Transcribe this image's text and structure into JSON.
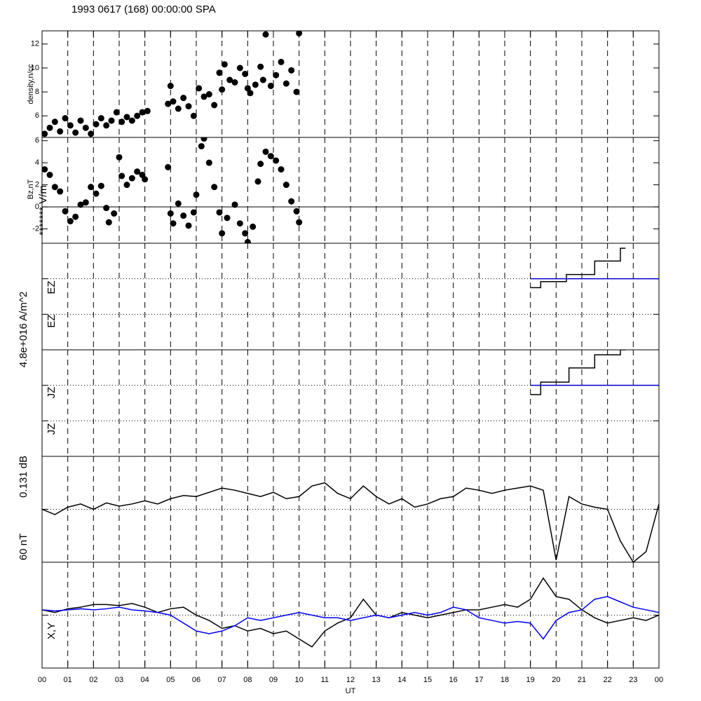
{
  "title": "1993 0617 (168) 00:00:00 SPA",
  "x_axis": {
    "label": "UT",
    "xlim": [
      0,
      24
    ],
    "xticks": [
      {
        "value": 0,
        "label": "00"
      },
      {
        "value": 1,
        "label": "01"
      },
      {
        "value": 2,
        "label": "02"
      },
      {
        "value": 3,
        "label": "03"
      },
      {
        "value": 4,
        "label": "04"
      },
      {
        "value": 5,
        "label": "05"
      },
      {
        "value": 6,
        "label": "06"
      },
      {
        "value": 7,
        "label": "07"
      },
      {
        "value": 8,
        "label": "08"
      },
      {
        "value": 9,
        "label": "09"
      },
      {
        "value": 10,
        "label": "10"
      },
      {
        "value": 11,
        "label": "11"
      },
      {
        "value": 12,
        "label": "12"
      },
      {
        "value": 13,
        "label": "13"
      },
      {
        "value": 14,
        "label": "14"
      },
      {
        "value": 15,
        "label": "15"
      },
      {
        "value": 16,
        "label": "16"
      },
      {
        "value": 17,
        "label": "17"
      },
      {
        "value": 18,
        "label": "18"
      },
      {
        "value": 19,
        "label": "19"
      },
      {
        "value": 20,
        "label": "20"
      },
      {
        "value": 21,
        "label": "21"
      },
      {
        "value": 22,
        "label": "22"
      },
      {
        "value": 23,
        "label": "23"
      },
      {
        "value": 24,
        "label": "00"
      }
    ]
  },
  "axis_labels": [
    "density,n/cc",
    "Bz,nT",
    "******* V/m",
    "4.8e+016 A/m^2",
    "EZ",
    "EZ",
    "JZ",
    "JZ",
    "0.131 dB",
    "60 nT",
    "X,Y"
  ],
  "chart_data": [
    {
      "type": "scatter",
      "ylim": [
        4.2,
        13.1
      ],
      "yticks": [
        6,
        8,
        10,
        12
      ],
      "series": [
        {
          "color": "#000000",
          "x": [
            0.1,
            0.3,
            0.5,
            0.7,
            0.9,
            1.1,
            1.3,
            1.5,
            1.7,
            1.9,
            2.1,
            2.3,
            2.5,
            2.7,
            2.9,
            3.1,
            3.3,
            3.5,
            3.7,
            3.9,
            4.1,
            4.9,
            5.0,
            5.1,
            5.3,
            5.5,
            5.7,
            5.9,
            6.1,
            6.3,
            6.5,
            6.7,
            6.9,
            7.0,
            7.1,
            7.3,
            7.5,
            7.7,
            7.9,
            8.0,
            8.1,
            8.3,
            8.5,
            8.6,
            8.7,
            8.9,
            9.1,
            9.3,
            9.5,
            9.7,
            9.9,
            10.0
          ],
          "values": [
            4.5,
            5.0,
            5.5,
            4.7,
            5.8,
            5.2,
            4.6,
            5.6,
            5.0,
            4.5,
            5.3,
            5.8,
            5.2,
            5.6,
            6.3,
            5.5,
            5.9,
            5.6,
            6.0,
            6.3,
            6.4,
            7.0,
            8.5,
            7.2,
            6.6,
            7.5,
            6.8,
            6.0,
            8.3,
            7.6,
            7.8,
            6.9,
            9.6,
            8.2,
            10.3,
            9.0,
            8.8,
            10.0,
            9.5,
            8.3,
            7.9,
            8.6,
            10.1,
            9.0,
            12.8,
            8.5,
            9.4,
            10.5,
            8.7,
            9.8,
            8.0,
            12.9
          ]
        }
      ]
    },
    {
      "type": "scatter",
      "ylim": [
        -3.3,
        6.3
      ],
      "yticks": [
        -2,
        0,
        2,
        4,
        6
      ],
      "zero_line": true,
      "series": [
        {
          "color": "#000000",
          "x": [
            0.1,
            0.3,
            0.5,
            0.7,
            0.9,
            1.1,
            1.3,
            1.5,
            1.7,
            1.9,
            2.1,
            2.3,
            2.5,
            2.6,
            2.8,
            3.0,
            3.1,
            3.3,
            3.5,
            3.7,
            3.9,
            4.0,
            4.9,
            5.0,
            5.1,
            5.3,
            5.5,
            5.7,
            5.9,
            6.0,
            6.2,
            6.3,
            6.5,
            6.7,
            6.9,
            7.0,
            7.2,
            7.5,
            7.7,
            7.9,
            8.0,
            8.2,
            8.4,
            8.5,
            8.7,
            8.9,
            9.1,
            9.3,
            9.5,
            9.7,
            9.9,
            10.0
          ],
          "values": [
            3.4,
            2.9,
            1.8,
            1.4,
            -0.4,
            -1.3,
            -0.9,
            0.2,
            0.4,
            1.8,
            1.2,
            1.9,
            -0.1,
            -1.4,
            -0.6,
            4.5,
            2.8,
            2.0,
            2.6,
            3.2,
            2.9,
            2.5,
            3.6,
            -0.6,
            -1.5,
            0.3,
            -0.8,
            -1.7,
            -0.5,
            1.1,
            5.5,
            6.2,
            4.0,
            1.8,
            -0.5,
            -2.4,
            -1.0,
            0.2,
            -1.5,
            -2.4,
            -3.2,
            -1.8,
            2.3,
            3.9,
            5.0,
            4.6,
            4.2,
            3.4,
            2.0,
            0.5,
            -0.4,
            -1.4
          ]
        }
      ]
    },
    {
      "type": "step",
      "ylim": [
        0,
        3
      ],
      "gridlines": [
        1,
        2
      ],
      "series": [
        {
          "color": "#000000",
          "x": [
            19.0,
            19.4,
            20.4,
            21.5,
            22.5,
            22.7
          ],
          "values": [
            1.75,
            1.92,
            2.12,
            2.5,
            2.86,
            2.86
          ]
        },
        {
          "color": "#0000cc",
          "x": [
            19.0,
            24.0
          ],
          "values": [
            2,
            2
          ]
        }
      ]
    },
    {
      "type": "step",
      "ylim": [
        0,
        3
      ],
      "gridlines": [
        1,
        2
      ],
      "series": [
        {
          "color": "#000000",
          "x": [
            19.0,
            19.4,
            20.5,
            21.5,
            22.5,
            22.7
          ],
          "values": [
            1.74,
            2.09,
            2.49,
            2.86,
            3,
            3
          ]
        },
        {
          "color": "#0000cc",
          "x": [
            19.0,
            24.0
          ],
          "values": [
            2,
            2
          ]
        }
      ]
    },
    {
      "type": "line",
      "ylim": [
        0,
        1
      ],
      "gridlines": [
        0.5
      ],
      "x": [
        0,
        0.5,
        1,
        1.5,
        2,
        2.5,
        3,
        3.5,
        4,
        4.5,
        5,
        5.5,
        6,
        6.5,
        7,
        7.5,
        8,
        8.5,
        9,
        9.5,
        10,
        10.5,
        11,
        11.5,
        12,
        12.5,
        13,
        13.5,
        14,
        14.5,
        15,
        15.5,
        16,
        16.5,
        17,
        17.5,
        18,
        18.5,
        19,
        19.5,
        20,
        20.5,
        21,
        21.5,
        22,
        22.5,
        23,
        23.5,
        24
      ],
      "series": [
        {
          "color": "#000000",
          "values": [
            0.5,
            0.45,
            0.52,
            0.55,
            0.5,
            0.56,
            0.53,
            0.55,
            0.58,
            0.55,
            0.6,
            0.63,
            0.62,
            0.66,
            0.7,
            0.68,
            0.65,
            0.62,
            0.66,
            0.6,
            0.62,
            0.72,
            0.75,
            0.65,
            0.6,
            0.72,
            0.62,
            0.55,
            0.6,
            0.52,
            0.55,
            0.6,
            0.62,
            0.7,
            0.68,
            0.65,
            0.68,
            0.7,
            0.72,
            0.68,
            0.02,
            0.62,
            0.55,
            0.52,
            0.5,
            0.2,
            0.0,
            0.1,
            0.55
          ]
        }
      ]
    },
    {
      "type": "line",
      "ylim": [
        -1,
        1
      ],
      "gridlines": [
        0
      ],
      "x": [
        0,
        0.5,
        1,
        1.5,
        2,
        2.5,
        3,
        3.5,
        4,
        4.5,
        5,
        5.5,
        6,
        6.5,
        7,
        7.5,
        8,
        8.5,
        9,
        9.5,
        10,
        10.5,
        11,
        11.5,
        12,
        12.5,
        13,
        13.5,
        14,
        14.5,
        15,
        15.5,
        16,
        16.5,
        17,
        17.5,
        18,
        18.5,
        19,
        19.5,
        20,
        20.5,
        21,
        21.5,
        22,
        22.5,
        23,
        23.5,
        24
      ],
      "series": [
        {
          "color": "#000000",
          "values": [
            0.1,
            0.05,
            0.12,
            0.15,
            0.2,
            0.2,
            0.18,
            0.22,
            0.15,
            0.05,
            0.12,
            0.15,
            0,
            -0.1,
            -0.25,
            -0.2,
            -0.3,
            -0.25,
            -0.35,
            -0.3,
            -0.45,
            -0.6,
            -0.3,
            -0.15,
            -0.05,
            0.3,
            0,
            -0.05,
            0.05,
            0,
            -0.05,
            0,
            0.05,
            0.1,
            0.1,
            0.15,
            0.2,
            0.15,
            0.3,
            0.7,
            0.35,
            0.3,
            0.1,
            -0.05,
            -0.15,
            -0.1,
            -0.05,
            -0.1,
            0
          ]
        },
        {
          "color": "#0000ff",
          "values": [
            0.1,
            0.08,
            0.1,
            0.12,
            0.1,
            0.12,
            0.15,
            0.1,
            0.08,
            0.05,
            0,
            -0.15,
            -0.3,
            -0.35,
            -0.3,
            -0.2,
            -0.05,
            -0.1,
            -0.05,
            0,
            0.05,
            0,
            -0.05,
            -0.05,
            -0.1,
            -0.05,
            0,
            -0.05,
            0,
            0.05,
            0,
            0.05,
            0.15,
            0.1,
            -0.05,
            -0.1,
            -0.15,
            -0.12,
            -0.15,
            -0.45,
            -0.1,
            0.05,
            0.1,
            0.3,
            0.35,
            0.25,
            0.15,
            0.1,
            0.05
          ]
        }
      ]
    }
  ]
}
